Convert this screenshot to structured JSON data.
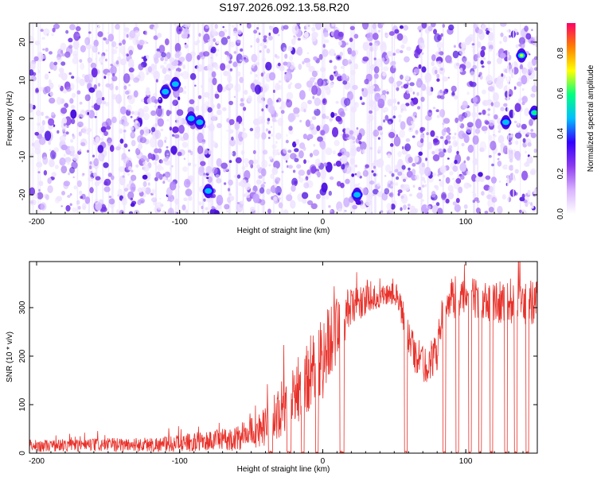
{
  "title": "S197.2026.092.13.58.R20",
  "chart_data": [
    {
      "type": "heatmap",
      "name": "spectrogram",
      "xlabel": "Height of straight line (km)",
      "ylabel": "Frequency (Hz)",
      "xlim": [
        -205,
        150
      ],
      "ylim": [
        -25,
        25
      ],
      "xticks": [
        -200,
        -100,
        0,
        100
      ],
      "yticks": [
        -20,
        -10,
        0,
        10,
        20
      ],
      "colorbar": {
        "label": "Normalized spectral amplitude",
        "range": [
          0,
          0.95
        ],
        "ticks": [
          0.0,
          0.2,
          0.4,
          0.6,
          0.8
        ],
        "colors": [
          "#ffffff",
          "#d9b3ff",
          "#8e3bf0",
          "#3300ff",
          "#00bfff",
          "#00ff80",
          "#ffff00",
          "#ff7f00",
          "#ff0066"
        ]
      },
      "hot_spots": [
        {
          "x": -110,
          "y": 7,
          "amp": 0.35
        },
        {
          "x": -103,
          "y": 9,
          "amp": 0.3
        },
        {
          "x": -92,
          "y": 0,
          "amp": 0.32
        },
        {
          "x": -86,
          "y": -1,
          "amp": 0.3
        },
        {
          "x": -80,
          "y": -19,
          "amp": 0.28
        },
        {
          "x": 24,
          "y": -20,
          "amp": 0.3
        },
        {
          "x": 128,
          "y": -1,
          "amp": 0.4
        },
        {
          "x": 139,
          "y": 16.5,
          "amp": 0.7
        },
        {
          "x": 148,
          "y": 1.5,
          "amp": 0.45
        }
      ]
    },
    {
      "type": "line",
      "name": "snr",
      "xlabel": "Height of straight line (km)",
      "ylabel": "SNR (10 * v/v)",
      "xlim": [
        -205,
        150
      ],
      "ylim": [
        0,
        395
      ],
      "xticks": [
        -200,
        -100,
        0,
        100
      ],
      "yticks": [
        0,
        100,
        200,
        300
      ],
      "color": "#e8312a",
      "profile": [
        {
          "x": -205,
          "base": 15,
          "noise": 12
        },
        {
          "x": -110,
          "base": 18,
          "noise": 16
        },
        {
          "x": -60,
          "base": 30,
          "noise": 25
        },
        {
          "x": -40,
          "base": 55,
          "noise": 40
        },
        {
          "x": -20,
          "base": 120,
          "noise": 70
        },
        {
          "x": 0,
          "base": 200,
          "noise": 90
        },
        {
          "x": 10,
          "base": 260,
          "noise": 70
        },
        {
          "x": 20,
          "base": 300,
          "noise": 40
        },
        {
          "x": 35,
          "base": 320,
          "noise": 25
        },
        {
          "x": 52,
          "base": 330,
          "noise": 25
        },
        {
          "x": 58,
          "base": 260,
          "noise": 40
        },
        {
          "x": 65,
          "base": 200,
          "noise": 40
        },
        {
          "x": 72,
          "base": 180,
          "noise": 40
        },
        {
          "x": 80,
          "base": 210,
          "noise": 40
        },
        {
          "x": 85,
          "base": 320,
          "noise": 40
        },
        {
          "x": 150,
          "base": 310,
          "noise": 50
        }
      ],
      "dropouts": [
        [
          -38,
          -35
        ],
        [
          -25,
          -22
        ],
        [
          -15,
          -13
        ],
        [
          -5,
          -3
        ],
        [
          12,
          15
        ],
        [
          57,
          59
        ],
        [
          84,
          86
        ],
        [
          93,
          95
        ],
        [
          102,
          104
        ],
        [
          109,
          111
        ],
        [
          117,
          119
        ],
        [
          127,
          129
        ],
        [
          134,
          136
        ],
        [
          142,
          144
        ]
      ]
    }
  ]
}
